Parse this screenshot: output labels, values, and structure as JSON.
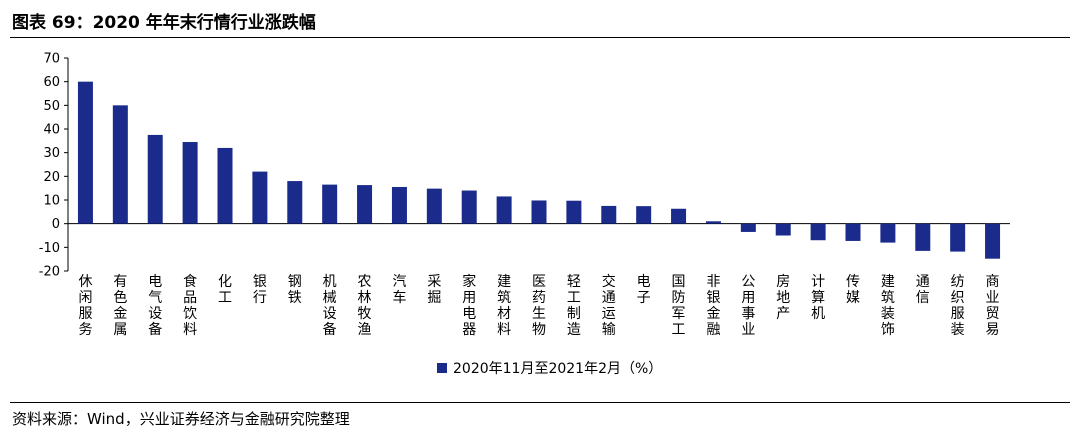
{
  "header": {
    "title": "图表 69：2020 年年末行情行业涨跌幅"
  },
  "footer": {
    "source": "资料来源：Wind，兴业证券经济与金融研究院整理"
  },
  "colors": {
    "bar": "#1a2b8c",
    "axis": "#000000"
  },
  "chart_data": {
    "type": "bar",
    "categories": [
      "休闲服务",
      "有色金属",
      "电气设备",
      "食品饮料",
      "化工",
      "银行",
      "钢铁",
      "机械设备",
      "农林牧渔",
      "汽车",
      "采掘",
      "家用电器",
      "建筑材料",
      "医药生物",
      "轻工制造",
      "交通运输",
      "电子",
      "国防军工",
      "非银金融",
      "公用事业",
      "房地产",
      "计算机",
      "传媒",
      "建筑装饰",
      "通信",
      "纺织服装",
      "商业贸易"
    ],
    "series": [
      {
        "name": "2020年11月至2021年2月（%）",
        "values": [
          60,
          50,
          37.5,
          34.5,
          32,
          22,
          18,
          16.5,
          16.3,
          15.5,
          14.8,
          14,
          11.5,
          9.8,
          9.7,
          7.5,
          7.4,
          6.3,
          1,
          -3.5,
          -5,
          -7,
          -7.3,
          -8,
          -11.5,
          -11.8,
          -14.8
        ]
      }
    ],
    "yticks": [
      "70",
      "60",
      "50",
      "40",
      "30",
      "20",
      "10",
      "0",
      "-10",
      "-20"
    ],
    "ylim": [
      -20,
      70
    ],
    "legend_position": "bottom-center",
    "grid": false
  }
}
